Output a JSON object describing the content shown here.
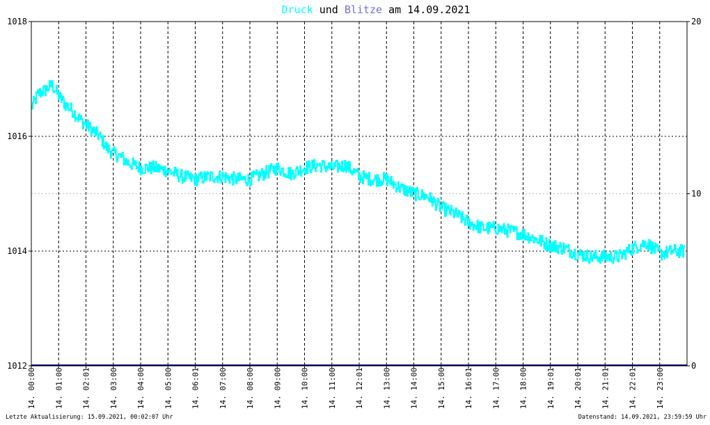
{
  "chart_data": {
    "type": "line",
    "title": {
      "part1": "Druck",
      "part2": " und ",
      "part3": "Blitze",
      "part4": " am 14.09.2021"
    },
    "colors": {
      "druck": "#00ffff",
      "blitze": "#7070d8",
      "blitze_line": "#000080",
      "title_text": "#000000",
      "frame": "#000000",
      "grid": "#000000",
      "grid_light": "#bbbbbb",
      "footer_text": "#000000"
    },
    "y_left": {
      "min": 1012,
      "max": 1018,
      "ticks": [
        "1018",
        "1016",
        "1014",
        "1012"
      ]
    },
    "y_right": {
      "min": 0,
      "max": 20,
      "ticks": [
        "20",
        "10",
        "0"
      ]
    },
    "x_tick_labels": [
      "14. 00:00",
      "14. 01:00",
      "14. 02:01",
      "14. 03:00",
      "14. 04:00",
      "14. 05:00",
      "14. 06:01",
      "14. 07:00",
      "14. 08:00",
      "14. 09:00",
      "14. 10:00",
      "14. 11:00",
      "14. 12:01",
      "14. 13:00",
      "14. 14:00",
      "14. 15:00",
      "14. 16:01",
      "14. 17:00",
      "14. 18:00",
      "14. 19:01",
      "14. 20:01",
      "14. 21:01",
      "14. 22:01",
      "14. 23:00"
    ],
    "series": [
      {
        "name": "Druck",
        "hours": [
          0,
          0.25,
          0.5,
          0.75,
          1,
          1.25,
          1.5,
          1.75,
          2,
          2.25,
          2.5,
          2.75,
          3,
          3.25,
          3.5,
          3.75,
          4,
          4.5,
          5,
          5.5,
          6,
          6.5,
          7,
          7.5,
          8,
          8.5,
          9,
          9.5,
          10,
          10.5,
          11,
          11.5,
          12,
          12.5,
          13,
          13.5,
          14,
          14.5,
          15,
          15.5,
          16,
          16.5,
          17,
          17.5,
          18,
          18.5,
          19,
          19.5,
          20,
          20.5,
          21,
          21.5,
          22,
          22.5,
          23,
          23.5,
          23.9
        ],
        "values": [
          1016.5,
          1016.75,
          1016.8,
          1016.9,
          1016.7,
          1016.55,
          1016.45,
          1016.3,
          1016.2,
          1016.1,
          1016.0,
          1015.8,
          1015.7,
          1015.65,
          1015.55,
          1015.5,
          1015.45,
          1015.45,
          1015.4,
          1015.3,
          1015.25,
          1015.3,
          1015.3,
          1015.25,
          1015.25,
          1015.35,
          1015.45,
          1015.35,
          1015.45,
          1015.5,
          1015.45,
          1015.5,
          1015.3,
          1015.25,
          1015.25,
          1015.1,
          1015.0,
          1014.95,
          1014.75,
          1014.65,
          1014.5,
          1014.4,
          1014.4,
          1014.35,
          1014.3,
          1014.2,
          1014.1,
          1014.05,
          1013.95,
          1013.9,
          1013.9,
          1013.9,
          1014.05,
          1014.15,
          1013.95,
          1014.0,
          1014.0
        ],
        "noise": 0.12
      },
      {
        "name": "Blitze",
        "hours": [
          0,
          24
        ],
        "values": [
          0,
          0
        ]
      }
    ],
    "xlim": [
      0,
      24
    ]
  },
  "footer": {
    "left": "Letzte Aktualisierung: 15.09.2021, 00:02:07 Uhr",
    "right": "Datenstand: 14.09.2021, 23:59:59 Uhr"
  }
}
